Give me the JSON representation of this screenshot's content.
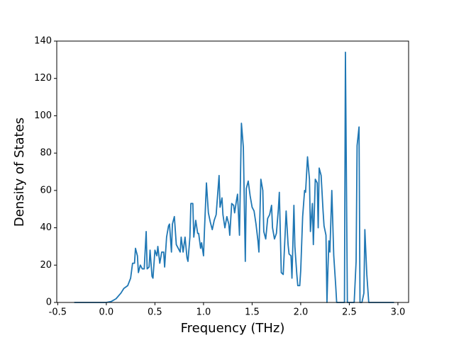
{
  "chart_data": {
    "type": "line",
    "xlabel": "Frequency (THz)",
    "ylabel": "Density of States",
    "xlim": [
      -0.51,
      3.11
    ],
    "ylim": [
      0,
      140
    ],
    "xticks": [
      -0.5,
      {
        "value": 0,
        "label": "0.0"
      },
      0.5,
      {
        "value": 1,
        "label": "1.0"
      },
      1.5,
      {
        "value": 2,
        "label": "2.0"
      },
      2.5,
      {
        "value": 3,
        "label": "3.0"
      }
    ],
    "yticks": [
      0,
      20,
      40,
      60,
      80,
      100,
      120,
      140
    ],
    "grid": false,
    "series": [
      {
        "color": "#1f77b4",
        "x": [
          -0.33,
          0.0,
          0.05,
          0.1,
          0.15,
          0.18,
          0.22,
          0.25,
          0.27,
          0.29,
          0.3,
          0.32,
          0.33,
          0.35,
          0.37,
          0.39,
          0.41,
          0.42,
          0.44,
          0.45,
          0.47,
          0.48,
          0.5,
          0.52,
          0.53,
          0.55,
          0.57,
          0.59,
          0.6,
          0.62,
          0.64,
          0.65,
          0.67,
          0.68,
          0.7,
          0.72,
          0.74,
          0.76,
          0.77,
          0.79,
          0.81,
          0.83,
          0.84,
          0.86,
          0.87,
          0.89,
          0.9,
          0.92,
          0.94,
          0.95,
          0.97,
          0.98,
          1.0,
          1.01,
          1.03,
          1.05,
          1.07,
          1.09,
          1.11,
          1.13,
          1.16,
          1.17,
          1.19,
          1.2,
          1.22,
          1.24,
          1.26,
          1.27,
          1.29,
          1.31,
          1.32,
          1.34,
          1.35,
          1.37,
          1.39,
          1.41,
          1.43,
          1.44,
          1.46,
          1.48,
          1.5,
          1.52,
          1.54,
          1.56,
          1.57,
          1.59,
          1.61,
          1.62,
          1.64,
          1.66,
          1.68,
          1.7,
          1.71,
          1.73,
          1.75,
          1.77,
          1.78,
          1.8,
          1.82,
          1.84,
          1.85,
          1.87,
          1.88,
          1.9,
          1.91,
          1.93,
          1.94,
          1.96,
          1.97,
          1.99,
          2.0,
          2.02,
          2.04,
          2.05,
          2.07,
          2.09,
          2.1,
          2.12,
          2.13,
          2.15,
          2.17,
          2.18,
          2.19,
          2.21,
          2.23,
          2.24,
          2.26,
          2.27,
          2.28,
          2.29,
          2.3,
          2.32,
          2.34,
          2.36,
          2.37,
          2.44,
          2.45,
          2.46,
          2.48,
          2.55,
          2.57,
          2.58,
          2.6,
          2.61,
          2.63,
          2.65,
          2.66,
          2.68,
          2.7,
          2.96
        ],
        "values": [
          0,
          0,
          0.5,
          2,
          5,
          7.5,
          9,
          13,
          21,
          21,
          29,
          25,
          16,
          20,
          18,
          18,
          38,
          18,
          19,
          28,
          14,
          13,
          28,
          25,
          30,
          21,
          27,
          27,
          19,
          35,
          41,
          42,
          27,
          42,
          46,
          31,
          29,
          27,
          35,
          27,
          35,
          24,
          22,
          35,
          53,
          53,
          35,
          44,
          37,
          37,
          29,
          32,
          25,
          39,
          64,
          48,
          43,
          39,
          44,
          47,
          68,
          51,
          56,
          47,
          40,
          46,
          42,
          36,
          53,
          52,
          48,
          55,
          58,
          36,
          96,
          83,
          22,
          61,
          65,
          57,
          51,
          49,
          42,
          33,
          27,
          66,
          60,
          38,
          34,
          45,
          47,
          52,
          40,
          34,
          37,
          50,
          59,
          16,
          15,
          37,
          49,
          31,
          26,
          25,
          13,
          52,
          30,
          15,
          9,
          9,
          17,
          46,
          60,
          59,
          78,
          66,
          38,
          53,
          31,
          66,
          64,
          40,
          72,
          68,
          49,
          41,
          36,
          0,
          18,
          33,
          27,
          60,
          25,
          9,
          0,
          0,
          0,
          134,
          0,
          0,
          22,
          84,
          94,
          0,
          0,
          5,
          39,
          15,
          0,
          0
        ]
      }
    ]
  }
}
